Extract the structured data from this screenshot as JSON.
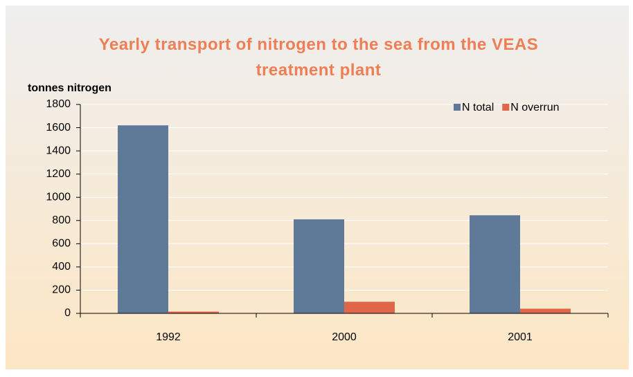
{
  "chart_data": {
    "type": "bar",
    "title": "Yearly transport of nitrogen to the sea from the VEAS treatment plant",
    "ylabel": "tonnes nitrogen",
    "categories": [
      "1992",
      "2000",
      "2001"
    ],
    "series": [
      {
        "name": "N total",
        "color": "#5f7a99",
        "values": [
          1620,
          810,
          845
        ]
      },
      {
        "name": "N overrun",
        "color": "#e0664a",
        "values": [
          15,
          100,
          40
        ]
      }
    ],
    "ylim": [
      0,
      1800
    ],
    "yticks": [
      0,
      200,
      400,
      600,
      800,
      1000,
      1200,
      1400,
      1600,
      1800
    ],
    "grid": true,
    "legend": "top-right"
  }
}
